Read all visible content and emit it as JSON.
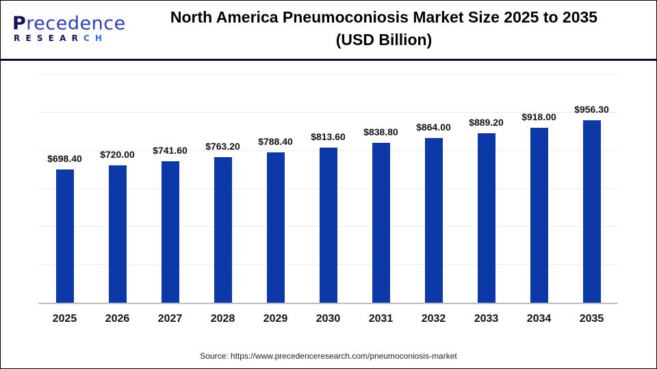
{
  "header": {
    "logo_main_first": "P",
    "logo_main_rest": "recedence",
    "logo_sub_main": "RESEAR",
    "logo_sub_accent": "CH",
    "title_line1": "North America Pneumoconiosis Market Size 2025 to 2035",
    "title_line2": "(USD Billion)"
  },
  "footer": {
    "source": "Source: https://www.precedenceresearch.com/pneumoconiosis-market"
  },
  "colors": {
    "bar": "#0d38a8",
    "header_rule": "#0b0b3a",
    "gridline": "#ececec"
  },
  "chart_data": {
    "type": "bar",
    "title": "North America Pneumoconiosis Market Size 2025 to 2035 (USD Billion)",
    "xlabel": "",
    "ylabel": "USD Billion",
    "categories": [
      "2025",
      "2026",
      "2027",
      "2028",
      "2029",
      "2030",
      "2031",
      "2032",
      "2033",
      "2034",
      "2035"
    ],
    "values": [
      698.4,
      720.0,
      741.6,
      763.2,
      788.4,
      813.6,
      838.8,
      864.0,
      889.2,
      918.0,
      956.3
    ],
    "value_labels": [
      "$698.40",
      "$720.00",
      "$741.60",
      "$763.20",
      "$788.40",
      "$813.60",
      "$838.80",
      "$864.00",
      "$889.20",
      "$918.00",
      "$956.30"
    ],
    "ylim": [
      0,
      1200
    ],
    "grid": true,
    "legend": "none",
    "y_tick_labels_visible": false
  }
}
